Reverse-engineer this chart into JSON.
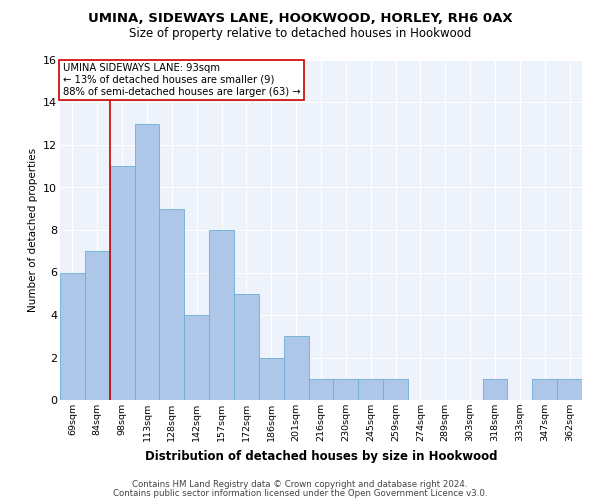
{
  "title": "UMINA, SIDEWAYS LANE, HOOKWOOD, HORLEY, RH6 0AX",
  "subtitle": "Size of property relative to detached houses in Hookwood",
  "xlabel": "Distribution of detached houses by size in Hookwood",
  "ylabel": "Number of detached properties",
  "categories": [
    "69sqm",
    "84sqm",
    "98sqm",
    "113sqm",
    "128sqm",
    "142sqm",
    "157sqm",
    "172sqm",
    "186sqm",
    "201sqm",
    "216sqm",
    "230sqm",
    "245sqm",
    "259sqm",
    "274sqm",
    "289sqm",
    "303sqm",
    "318sqm",
    "333sqm",
    "347sqm",
    "362sqm"
  ],
  "values": [
    6,
    7,
    11,
    13,
    9,
    4,
    8,
    5,
    2,
    3,
    1,
    1,
    1,
    1,
    0,
    0,
    0,
    1,
    0,
    1,
    1
  ],
  "bar_color": "#aec6e8",
  "bar_edge_color": "#6aafd4",
  "background_color": "#eef2fb",
  "grid_color": "#ffffff",
  "vline_x": 1.5,
  "vline_color": "#cc0000",
  "annotation_text": "UMINA SIDEWAYS LANE: 93sqm\n← 13% of detached houses are smaller (9)\n88% of semi-detached houses are larger (63) →",
  "annotation_box_color": "#ffffff",
  "annotation_box_edge": "#cc0000",
  "ylim": [
    0,
    16
  ],
  "yticks": [
    0,
    2,
    4,
    6,
    8,
    10,
    12,
    14,
    16
  ],
  "footer_line1": "Contains HM Land Registry data © Crown copyright and database right 2024.",
  "footer_line2": "Contains public sector information licensed under the Open Government Licence v3.0."
}
